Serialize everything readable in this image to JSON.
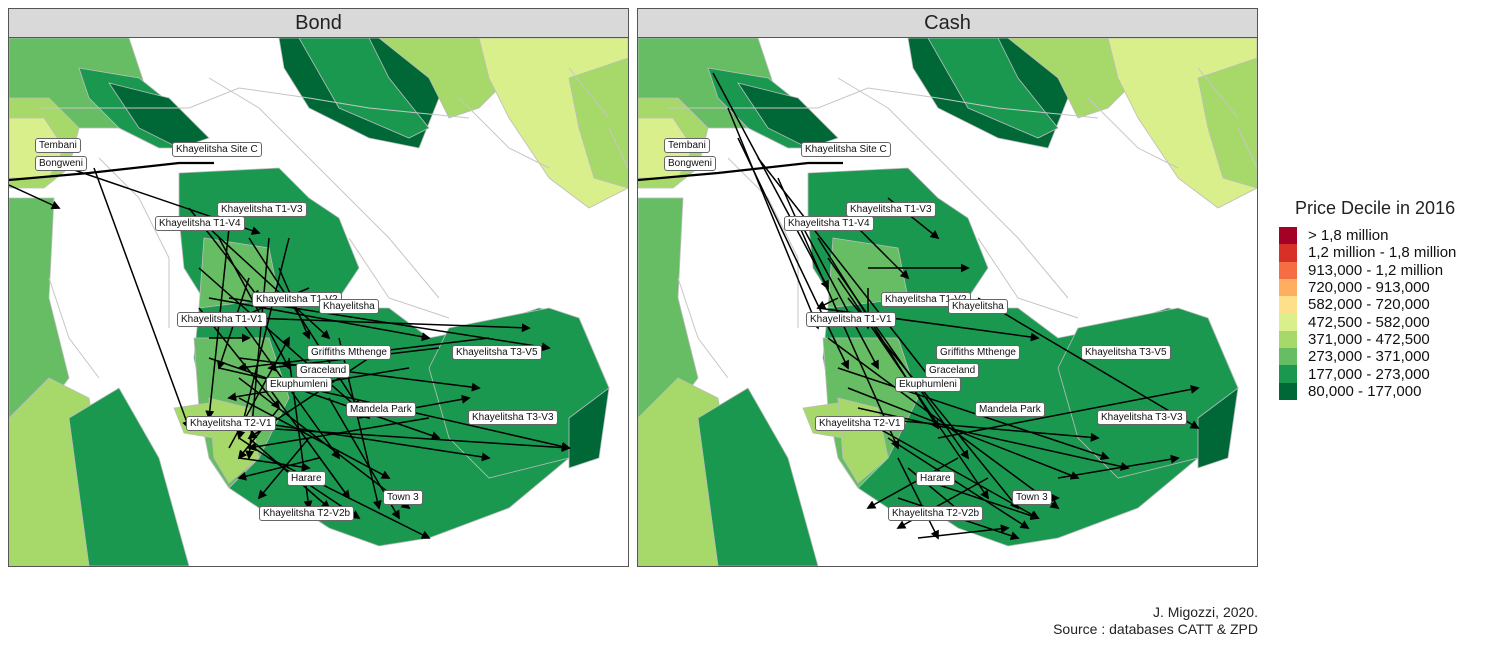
{
  "panels": [
    {
      "title": "Bond",
      "labels": [
        "Tembani",
        "Bongweni",
        "Khayelitsha Site C",
        "Khayelitsha T1-V3",
        "Khayelitsha T1-V4",
        "Khayelitsha T1-V2",
        "Khayelitsha",
        "Khayelitsha T1-V1",
        "Griffiths Mthenge",
        "Khayelitsha T3-V5",
        "Graceland",
        "Ekuphumleni",
        "Mandela Park",
        "Khayelitsha T2-V1",
        "Khayelitsha T3-V3",
        "Harare",
        "Town 3",
        "Khayelitsha T2-V2b"
      ]
    },
    {
      "title": "Cash",
      "labels": [
        "Tembani",
        "Bongweni",
        "Khayelitsha Site C",
        "Khayelitsha T1-V3",
        "Khayelitsha T1-V4",
        "Khayelitsha T1-V2",
        "Khayelitsha",
        "Khayelitsha T1-V1",
        "Griffiths Mthenge",
        "Khayelitsha T3-V5",
        "Graceland",
        "Ekuphumleni",
        "Mandela Park",
        "Khayelitsha T2-V1",
        "Khayelitsha T3-V3",
        "Harare",
        "Town 3",
        "Khayelitsha T2-V2b"
      ]
    }
  ],
  "legend": {
    "title": "Price Decile in 2016",
    "items": [
      {
        "label": "> 1,8 million",
        "color": "#a50026"
      },
      {
        "label": "1,2 million - 1,8 million",
        "color": "#d73027"
      },
      {
        "label": "913,000 - 1,2 million",
        "color": "#f46d43"
      },
      {
        "label": "720,000 - 913,000",
        "color": "#fdae61"
      },
      {
        "label": "582,000 - 720,000",
        "color": "#fee08b"
      },
      {
        "label": "472,500 - 582,000",
        "color": "#d9ef8b"
      },
      {
        "label": "371,000 - 472,500",
        "color": "#a6d96a"
      },
      {
        "label": "273,000 - 371,000",
        "color": "#66bd63"
      },
      {
        "label": "177,000 - 273,000",
        "color": "#1a9850"
      },
      {
        "label": "80,000 - 177,000",
        "color": "#006837"
      }
    ]
  },
  "source": {
    "line1": "J. Migozzi, 2020.",
    "line2": "Source : databases CATT & ZPD"
  }
}
